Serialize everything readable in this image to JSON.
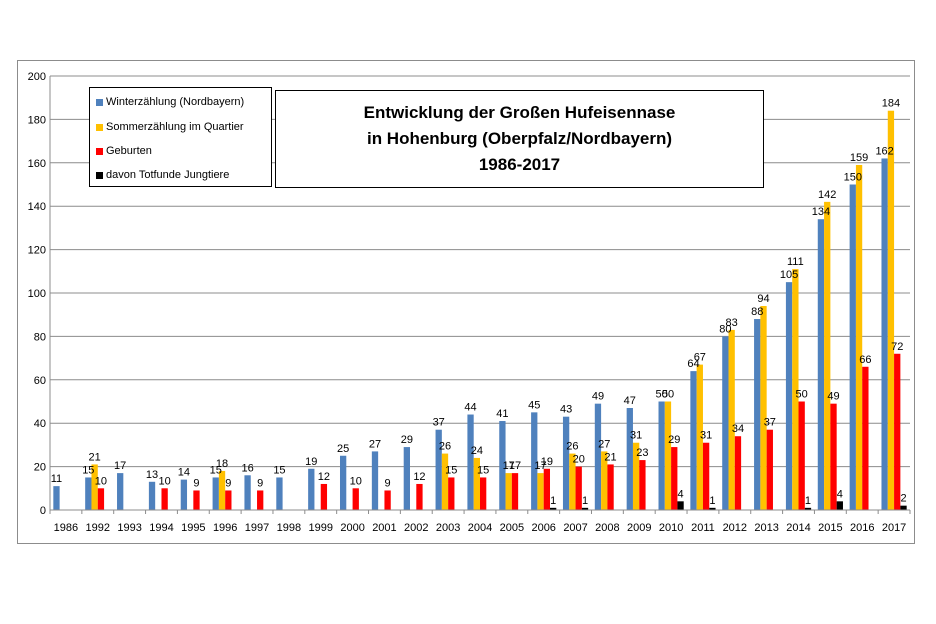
{
  "chart_data": {
    "type": "bar",
    "title_lines": [
      "Entwicklung  der Großen Hufeisennase",
      "in Hohenburg (Oberpfalz/Nordbayern)",
      "1986-2017"
    ],
    "categories": [
      "1986",
      "1992",
      "1993",
      "1994",
      "1995",
      "1996",
      "1997",
      "1998",
      "1999",
      "2000",
      "2001",
      "2002",
      "2003",
      "2004",
      "2005",
      "2006",
      "2007",
      "2008",
      "2009",
      "2010",
      "2011",
      "2012",
      "2013",
      "2014",
      "2015",
      "2016",
      "2017"
    ],
    "ylim": [
      0,
      200
    ],
    "yticks": [
      0,
      20,
      40,
      60,
      80,
      100,
      120,
      140,
      160,
      180,
      200
    ],
    "grid": true,
    "legend_position": "top-left",
    "series": [
      {
        "name": "Winterzählung (Nordbayern)",
        "color": "#4f81bd",
        "values": [
          11,
          15,
          17,
          13,
          14,
          15,
          16,
          15,
          19,
          25,
          27,
          29,
          37,
          44,
          41,
          45,
          43,
          49,
          47,
          50,
          64,
          80,
          88,
          105,
          134,
          150,
          162
        ]
      },
      {
        "name": "Sommerzählung im Quartier",
        "color": "#ffc000",
        "values": [
          null,
          21,
          null,
          null,
          null,
          18,
          null,
          null,
          null,
          null,
          null,
          null,
          26,
          24,
          17,
          17,
          26,
          27,
          31,
          50,
          67,
          83,
          94,
          111,
          142,
          159,
          184
        ]
      },
      {
        "name": "Geburten",
        "color": "#ff0000",
        "values": [
          null,
          10,
          null,
          10,
          9,
          9,
          9,
          null,
          12,
          10,
          9,
          12,
          15,
          15,
          17,
          19,
          20,
          21,
          23,
          29,
          31,
          34,
          37,
          50,
          49,
          66,
          72
        ]
      },
      {
        "name": "davon Totfunde Jungtiere",
        "color": "#000000",
        "values": [
          null,
          null,
          null,
          null,
          null,
          null,
          null,
          null,
          null,
          null,
          null,
          null,
          null,
          null,
          null,
          1,
          1,
          null,
          null,
          4,
          1,
          null,
          null,
          1,
          4,
          null,
          2
        ]
      }
    ]
  }
}
